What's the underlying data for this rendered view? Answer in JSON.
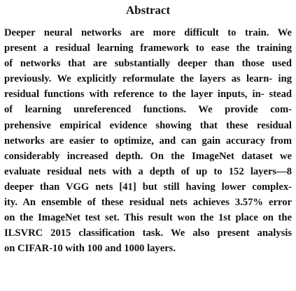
{
  "abstract": {
    "heading": "Abstract",
    "lines": [
      "Deeper neural networks are more difficult to train. We",
      "present a residual learning framework to ease the training",
      "of networks that are substantially deeper than those used",
      "previously. We explicitly reformulate the layers as learn- ing",
      "residual functions with reference to the layer inputs, in- stead",
      "of learning unreferenced functions. We provide com-",
      "prehensive empirical evidence showing that these residual",
      "networks are easier to optimize, and can gain accuracy from",
      "considerably increased depth. On the ImageNet dataset we",
      "evaluate residual nets with a depth of up to 152 layers—8",
      "deeper than VGG nets [41] but still having lower complex-",
      "ity. An ensemble of these residual nets achieves 3.57% error",
      "on the ImageNet test set. This result won the 1st place on the",
      "ILSVRC 2015 classification task. We also present analysis",
      "on CIFAR-10 with 100 and 1000 layers."
    ]
  }
}
